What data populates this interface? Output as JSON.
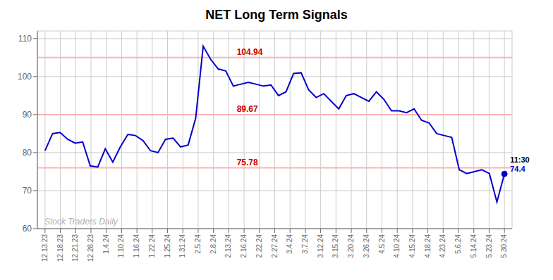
{
  "chart_data": {
    "type": "line",
    "title": "NET Long Term Signals",
    "x": [
      0,
      0.491803,
      0.983607,
      1.47541,
      1.967213,
      2.459016,
      2.95082,
      3.442623,
      3.934426,
      4.42623,
      4.918033,
      5.409836,
      5.901639,
      6.393443,
      6.885246,
      7.377049,
      7.868852,
      8.360656,
      8.852459,
      9.344262,
      9.836066,
      10.327869,
      10.819672,
      11.311475,
      11.803279,
      12.295082,
      12.786885,
      13.278689,
      13.770492,
      14.262295,
      14.754098,
      15.245902,
      15.737705,
      16.229508,
      16.721311,
      17.213115,
      17.704918,
      18.196721,
      18.688525,
      19.180328,
      19.672131,
      20.163934,
      20.655738,
      21.147541,
      21.639344,
      22.131148,
      22.622951,
      23.114754,
      23.606557,
      24.098361,
      24.590164,
      25.081967,
      25.57377,
      26.065574,
      26.557377,
      27.04918,
      27.540984,
      28.032787,
      28.52459,
      29.016393,
      29.508197,
      30
    ],
    "values": [
      80.5,
      85.0,
      85.3,
      83.5,
      82.5,
      82.8,
      76.5,
      76.2,
      81.0,
      77.5,
      81.5,
      84.8,
      84.5,
      83.2,
      80.5,
      80.0,
      83.5,
      83.8,
      81.5,
      82.0,
      89.0,
      108.0,
      104.5,
      102.0,
      101.5,
      97.5,
      98.0,
      98.5,
      98.0,
      97.5,
      97.8,
      95.0,
      96.0,
      100.8,
      101.0,
      96.5,
      94.5,
      95.5,
      93.5,
      91.5,
      95.0,
      95.5,
      94.5,
      93.5,
      96.0,
      94.0,
      91.0,
      91.0,
      90.5,
      91.5,
      88.5,
      87.8,
      85.0,
      84.5,
      84.0,
      75.5,
      74.5,
      75.0,
      75.5,
      74.5,
      67.0,
      74.4
    ],
    "color": "#0000cc",
    "xlim": [
      -0.5,
      30.5
    ],
    "xticks": [
      {
        "value": 0,
        "label": "12.13.23"
      },
      {
        "value": 1,
        "label": "12.18.23"
      },
      {
        "value": 2,
        "label": "12.21.23"
      },
      {
        "value": 3,
        "label": "12.28.23"
      },
      {
        "value": 4,
        "label": "1.4.24"
      },
      {
        "value": 5,
        "label": "1.10.24"
      },
      {
        "value": 6,
        "label": "1.16.24"
      },
      {
        "value": 7,
        "label": "1.22.24"
      },
      {
        "value": 8,
        "label": "1.25.24"
      },
      {
        "value": 9,
        "label": "1.31.24"
      },
      {
        "value": 10,
        "label": "2.5.24"
      },
      {
        "value": 11,
        "label": "2.8.24"
      },
      {
        "value": 12,
        "label": "2.13.24"
      },
      {
        "value": 13,
        "label": "2.16.24"
      },
      {
        "value": 14,
        "label": "2.22.24"
      },
      {
        "value": 15,
        "label": "2.27.24"
      },
      {
        "value": 16,
        "label": "3.4.24"
      },
      {
        "value": 17,
        "label": "3.7.24"
      },
      {
        "value": 18,
        "label": "3.12.24"
      },
      {
        "value": 19,
        "label": "3.15.24"
      },
      {
        "value": 20,
        "label": "3.20.24"
      },
      {
        "value": 21,
        "label": "3.26.24"
      },
      {
        "value": 22,
        "label": "4.5.24"
      },
      {
        "value": 23,
        "label": "4.10.24"
      },
      {
        "value": 24,
        "label": "4.15.24"
      },
      {
        "value": 25,
        "label": "4.18.24"
      },
      {
        "value": 26,
        "label": "4.23.24"
      },
      {
        "value": 27,
        "label": "5.6.24"
      },
      {
        "value": 28,
        "label": "5.14.24"
      },
      {
        "value": 29,
        "label": "5.23.24"
      },
      {
        "value": 30,
        "label": "5.30.24"
      }
    ],
    "ylim": [
      60,
      112
    ],
    "yticks": [
      60,
      70,
      80,
      90,
      100,
      110
    ],
    "grid": true,
    "reference_lines": [
      105.0,
      90.0,
      76.0
    ],
    "reference_line_color": "#ffb3b3",
    "annotations": [
      "104.94",
      "89.67",
      "75.78"
    ],
    "annotation_color": "#cc0000",
    "end_labels": [
      "11:30",
      "74.4"
    ],
    "watermark": "Stock Traders Daily",
    "watermark_color": "#b0b0b0"
  }
}
